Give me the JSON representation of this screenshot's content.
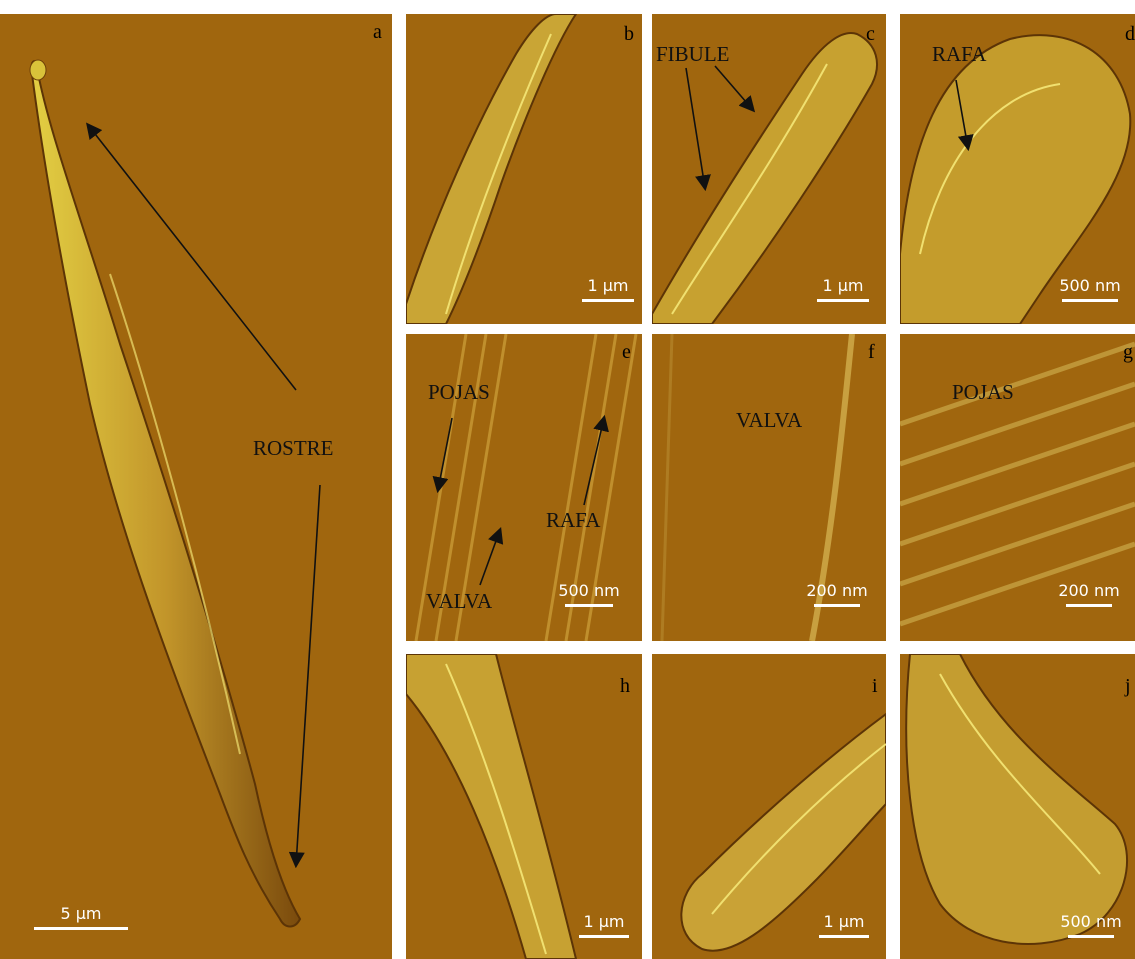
{
  "panels": [
    {
      "id": "a",
      "label": "a",
      "scalebar": "5 µm",
      "annotations": [
        "ROSTRE"
      ]
    },
    {
      "id": "b",
      "label": "b",
      "scalebar": "1 µm",
      "annotations": []
    },
    {
      "id": "c",
      "label": "c",
      "scalebar": "1 µm",
      "annotations": [
        "FIBULE"
      ]
    },
    {
      "id": "d",
      "label": "d",
      "scalebar": "500 nm",
      "annotations": [
        "RAFA"
      ]
    },
    {
      "id": "e",
      "label": "e",
      "scalebar": "500 nm",
      "annotations": [
        "POJAS",
        "RAFA",
        "VALVA"
      ]
    },
    {
      "id": "f",
      "label": "f",
      "scalebar": "200 nm",
      "annotations": [
        "VALVA"
      ]
    },
    {
      "id": "g",
      "label": "g",
      "scalebar": "200 nm",
      "annotations": [
        "POJAS"
      ]
    },
    {
      "id": "h",
      "label": "h",
      "scalebar": "1 µm",
      "annotations": []
    },
    {
      "id": "i",
      "label": "i",
      "scalebar": "1 µm",
      "annotations": []
    },
    {
      "id": "j",
      "label": "j",
      "scalebar": "500 nm",
      "annotations": []
    }
  ],
  "colors": {
    "background": "#a0660e",
    "highlight": "#d9c23a",
    "shadow": "#6e3f08"
  }
}
